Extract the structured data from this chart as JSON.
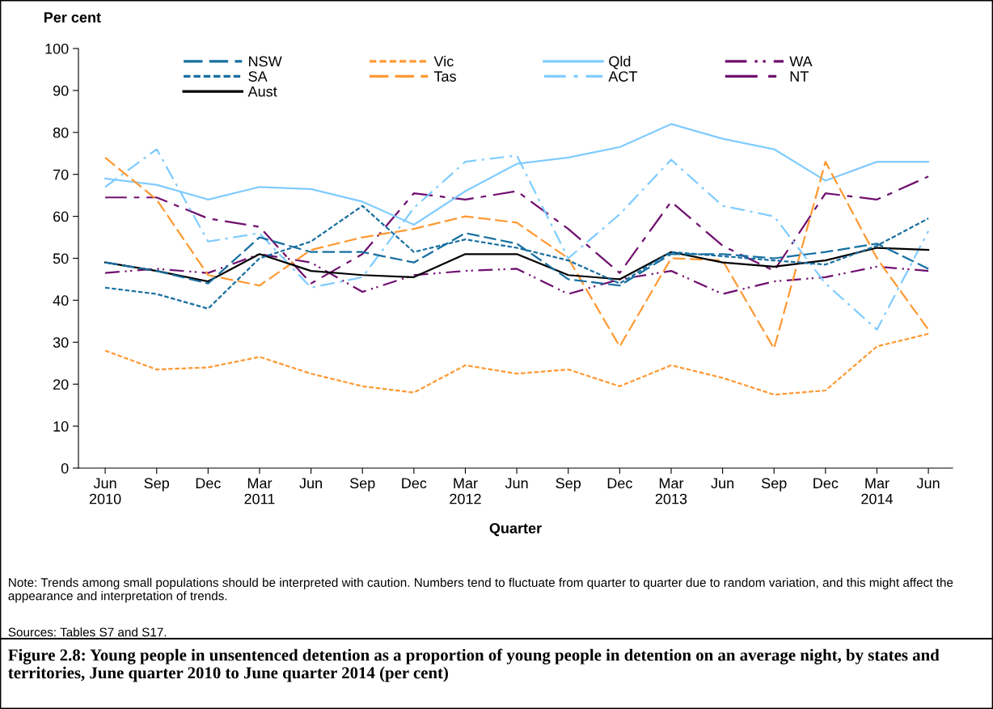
{
  "chart_data": {
    "type": "line",
    "title": "Figure 2.8: Young people in unsentenced detention as a proportion of young people in detention on an average night, by states and territories, June quarter 2010 to June quarter 2014 (per cent)",
    "xlabel": "Quarter",
    "ylabel": "Per cent",
    "categories": [
      "Jun\n2010",
      "Sep",
      "Dec",
      "Mar\n2011",
      "Jun",
      "Sep",
      "Dec",
      "Mar\n2012",
      "Jun",
      "Sep",
      "Dec",
      "Mar\n2013",
      "Jun",
      "Sep",
      "Dec",
      "Mar\n2014",
      "Jun"
    ],
    "ylim": [
      0,
      100
    ],
    "yticks": [
      0,
      10,
      20,
      30,
      40,
      50,
      60,
      70,
      80,
      90,
      100
    ],
    "grid": false,
    "legend": "top",
    "marker": "none",
    "series": [
      {
        "name": "NSW",
        "color": "#176fa0",
        "line_style": "longdash",
        "values": [
          49,
          47,
          44,
          55,
          51.5,
          51.5,
          49,
          56,
          53.5,
          45,
          43.5,
          51,
          51,
          50,
          51.5,
          53.5,
          47.5
        ]
      },
      {
        "name": "SA",
        "color": "#176fa0",
        "line_style": "dashed",
        "values": [
          43,
          41.5,
          38,
          50,
          54,
          62.5,
          51.5,
          54.5,
          52.5,
          49.5,
          44,
          51.5,
          50.5,
          49.5,
          48.5,
          53,
          59.5
        ]
      },
      {
        "name": "Aust",
        "color": "#000000",
        "line_style": "solid",
        "values": [
          49,
          47,
          44.5,
          51,
          47,
          46,
          45.5,
          51,
          51,
          46,
          45,
          51.5,
          49,
          48,
          49.5,
          52.5,
          52
        ]
      },
      {
        "name": "Vic",
        "color": "#ff9933",
        "line_style": "dashed",
        "values": [
          28,
          23.5,
          24,
          26.5,
          22.5,
          19.5,
          18,
          24.5,
          22.5,
          23.5,
          19.5,
          24.5,
          21.5,
          17.5,
          18.5,
          29,
          32
        ]
      },
      {
        "name": "Tas",
        "color": "#ff9933",
        "line_style": "longdash",
        "values": [
          74,
          64,
          46,
          43.5,
          52,
          55,
          57,
          60,
          58.5,
          50,
          29,
          50,
          49.5,
          28.5,
          73,
          50,
          33
        ]
      },
      {
        "name": "Qld",
        "color": "#80ccff",
        "line_style": "solid",
        "values": [
          69,
          67.5,
          64,
          67,
          66.5,
          63.5,
          58,
          66,
          72.5,
          74,
          76.5,
          82,
          78.5,
          76,
          68.5,
          73,
          73
        ]
      },
      {
        "name": "ACT",
        "color": "#80ccff",
        "line_style": "dashdot",
        "values": [
          67,
          76,
          54,
          56,
          43,
          45.5,
          62,
          73,
          74.5,
          50,
          60.5,
          73.5,
          62.5,
          60,
          44,
          33,
          56.5
        ]
      },
      {
        "name": "WA",
        "color": "#6f0f6f",
        "line_style": "dashdotdot",
        "values": [
          46.5,
          47.5,
          46.5,
          51,
          49,
          42,
          46,
          47,
          47.5,
          41.5,
          45,
          47,
          41.5,
          44.5,
          45.5,
          48,
          47
        ]
      },
      {
        "name": "NT",
        "color": "#6f0f6f",
        "line_style": "longdashgap",
        "values": [
          64.5,
          64.5,
          59.5,
          57.5,
          44,
          51,
          65.5,
          64,
          66,
          57,
          46.5,
          63.5,
          53,
          47,
          65.5,
          64,
          69.5
        ]
      }
    ],
    "annotations": [
      "Note: Trends among small populations should be interpreted with caution. Numbers tend to fluctuate from quarter to quarter due to random variation, and this might affect the appearance and interpretation of trends.",
      "Sources: Tables S7 and S17."
    ]
  }
}
